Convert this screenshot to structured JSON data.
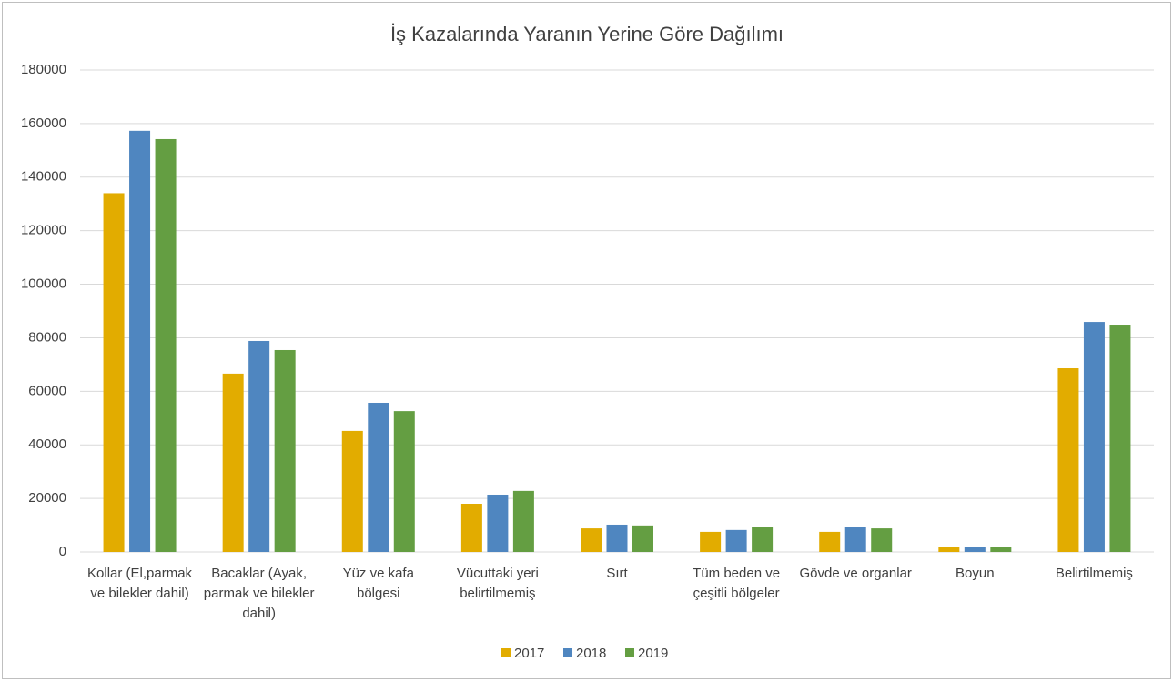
{
  "chart_data": {
    "type": "bar",
    "title": "İş Kazalarında Yaranın Yerine Göre Dağılımı",
    "categories": [
      "Kollar (El,parmak ve bilekler dahil)",
      "Bacaklar (Ayak, parmak ve bilekler dahil)",
      "Yüz ve kafa bölgesi",
      "Vücuttaki yeri belirtilmemiş",
      "Sırt",
      "Tüm beden ve çeşitli bölgeler",
      "Gövde ve organlar",
      "Boyun",
      "Belirtilmemiş"
    ],
    "series": [
      {
        "name": "2017",
        "color": "#e2ac00",
        "values": [
          134000,
          66600,
          45200,
          18000,
          8800,
          7500,
          7500,
          1700,
          68600
        ]
      },
      {
        "name": "2018",
        "color": "#4f86c0",
        "values": [
          157300,
          78800,
          55700,
          21400,
          10200,
          8200,
          9200,
          2000,
          85900
        ]
      },
      {
        "name": "2019",
        "color": "#649e42",
        "values": [
          154200,
          75400,
          52600,
          22800,
          9900,
          9500,
          8800,
          2000,
          84900
        ]
      }
    ],
    "ylim": [
      0,
      180000
    ],
    "yticks": [
      0,
      20000,
      40000,
      60000,
      80000,
      100000,
      120000,
      140000,
      160000,
      180000
    ],
    "grid": true,
    "legend": "bottom"
  }
}
